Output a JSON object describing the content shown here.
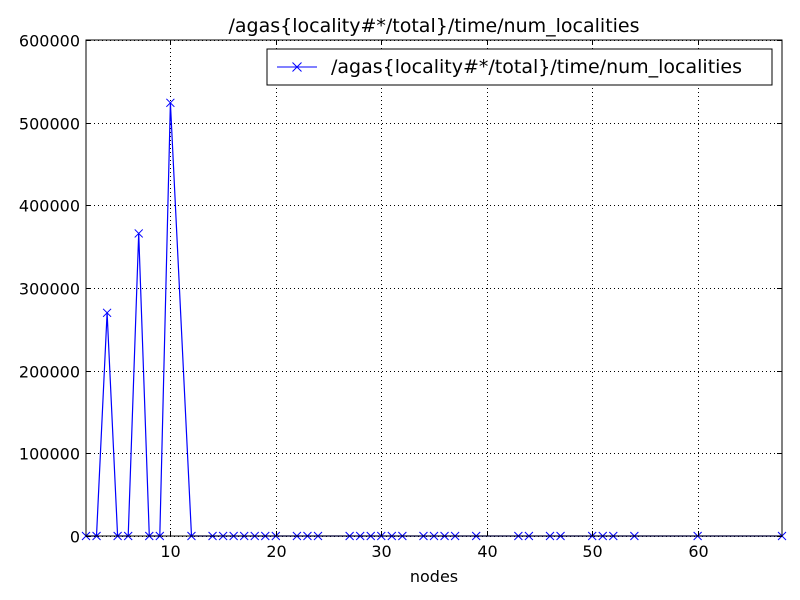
{
  "chart_data": {
    "type": "line",
    "title": "/agas{locality#*/total}/time/num_localities",
    "xlabel": "nodes",
    "ylabel": "",
    "xlim": [
      2,
      68
    ],
    "ylim": [
      0,
      600000
    ],
    "xticks": [
      10,
      20,
      30,
      40,
      50,
      60
    ],
    "yticks": [
      0,
      100000,
      200000,
      300000,
      400000,
      500000,
      600000
    ],
    "grid": true,
    "legend_position": "top-right",
    "series": [
      {
        "name": "/agas{locality#*/total}/time/num_localities",
        "color": "#0000ff",
        "marker": "x",
        "x": [
          2,
          3,
          4,
          5,
          6,
          7,
          8,
          9,
          10,
          12,
          14,
          15,
          16,
          17,
          18,
          19,
          20,
          22,
          23,
          24,
          27,
          28,
          29,
          30,
          31,
          32,
          34,
          35,
          36,
          37,
          39,
          43,
          44,
          46,
          47,
          50,
          51,
          52,
          54,
          60,
          68
        ],
        "y": [
          0,
          0,
          270000,
          0,
          0,
          366000,
          0,
          0,
          524000,
          0,
          0,
          0,
          0,
          0,
          0,
          0,
          0,
          0,
          0,
          0,
          0,
          0,
          0,
          0,
          0,
          0,
          0,
          0,
          0,
          0,
          0,
          0,
          0,
          0,
          0,
          0,
          0,
          0,
          0,
          0,
          0
        ]
      }
    ]
  }
}
